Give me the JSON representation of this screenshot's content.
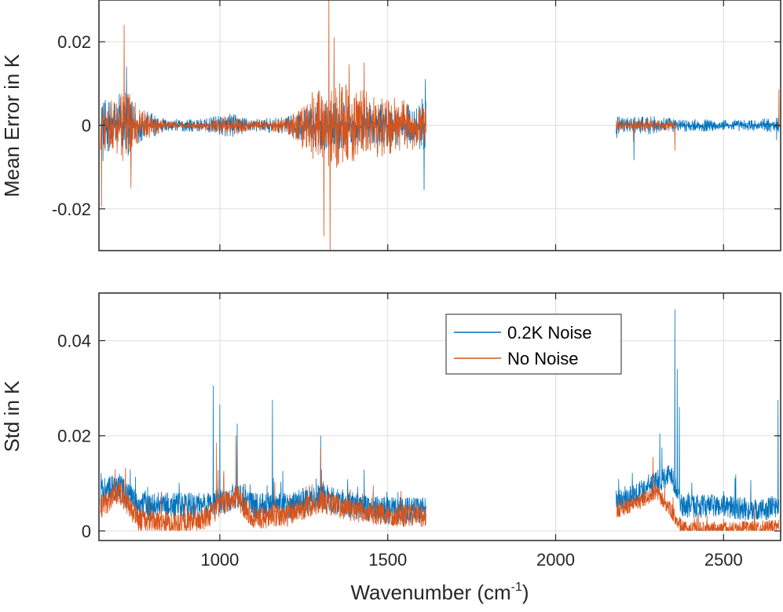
{
  "chart_data": [
    {
      "type": "line",
      "panel": "top",
      "title": "",
      "xlabel": "",
      "ylabel": "Mean Error in K",
      "xlim": [
        640,
        2670
      ],
      "ylim": [
        -0.03,
        0.03
      ],
      "xticks": [
        1000,
        1500,
        2000,
        2500
      ],
      "yticks": [
        -0.02,
        0,
        0.02
      ],
      "ytick_labels": [
        "-0.02",
        "0",
        "0.02"
      ],
      "grid": true,
      "series": [
        {
          "name": "0.2K Noise",
          "color": "#0072BD",
          "segments": [
            {
              "x_range": [
                645,
                1614
              ],
              "baseline": 0.0,
              "envelope_x": [
                650,
                700,
                720,
                760,
                850,
                950,
                1030,
                1100,
                1200,
                1250,
                1300,
                1350,
                1400,
                1450,
                1500,
                1550,
                1600,
                1614
              ],
              "envelope_amp": [
                0.006,
                0.007,
                0.008,
                0.004,
                0.0015,
                0.0015,
                0.003,
                0.0015,
                0.002,
                0.004,
                0.006,
                0.006,
                0.005,
                0.005,
                0.005,
                0.005,
                0.006,
                0.009
              ],
              "peaks": [
                [
                  652,
                  -0.0085
                ],
                [
                  700,
                  0.0075
                ],
                [
                  722,
                  0.014
                ],
                [
                  1608,
                  -0.0155
                ],
                [
                  1612,
                  0.011
                ]
              ]
            },
            {
              "x_range": [
                2180,
                2665
              ],
              "baseline": 0.0,
              "envelope_x": [
                2180,
                2250,
                2300,
                2350,
                2400,
                2500,
                2600,
                2665
              ],
              "envelope_amp": [
                0.002,
                0.002,
                0.0022,
                0.0016,
                0.0015,
                0.0014,
                0.0014,
                0.002
              ],
              "peaks": [
                [
                  2182,
                  -0.003
                ],
                [
                  2233,
                  -0.0083
                ],
                [
                  2658,
                  -0.0035
                ]
              ]
            }
          ]
        },
        {
          "name": "No Noise",
          "color": "#D95319",
          "segments": [
            {
              "x_range": [
                645,
                1614
              ],
              "baseline": 0.0,
              "envelope_x": [
                650,
                700,
                720,
                760,
                850,
                950,
                1030,
                1100,
                1200,
                1250,
                1300,
                1350,
                1400,
                1450,
                1500,
                1550,
                1600,
                1614
              ],
              "envelope_amp": [
                0.006,
                0.007,
                0.01,
                0.004,
                0.001,
                0.001,
                0.0025,
                0.001,
                0.002,
                0.006,
                0.01,
                0.011,
                0.009,
                0.008,
                0.007,
                0.006,
                0.006,
                0.004
              ],
              "peaks": [
                [
                  648,
                  -0.0195
                ],
                [
                  715,
                  0.024
                ],
                [
                  735,
                  -0.015
                ],
                [
                  1310,
                  -0.0265
                ],
                [
                  1325,
                  0.032
                ],
                [
                  1328,
                  -0.031
                ],
                [
                  1340,
                  0.021
                ],
                [
                  1385,
                  0.0145
                ],
                [
                  1430,
                  0.015
                ]
              ]
            },
            {
              "x_range": [
                2180,
                2360
              ],
              "baseline": 0.0,
              "envelope_x": [
                2180,
                2250,
                2300,
                2360
              ],
              "envelope_amp": [
                0.0015,
                0.0015,
                0.0014,
                0.0012
              ],
              "peaks": [
                [
                  2232,
                  -0.004
                ],
                [
                  2355,
                  -0.006
                ]
              ]
            },
            {
              "x_range": [
                2662,
                2668
              ],
              "baseline": 0.0,
              "envelope_x": [
                2662,
                2668
              ],
              "envelope_amp": [
                0.0005,
                0.0005
              ],
              "peaks": [
                [
                  2665,
                  0.0085
                ]
              ]
            }
          ]
        }
      ]
    },
    {
      "type": "line",
      "panel": "bottom",
      "title": "",
      "xlabel": "Wavenumber (cm⁻¹)",
      "ylabel": "Std in K",
      "xlim": [
        640,
        2670
      ],
      "ylim": [
        -0.002,
        0.05
      ],
      "xticks": [
        1000,
        1500,
        2000,
        2500
      ],
      "xtick_labels": [
        "1000",
        "1500",
        "2000",
        "2500"
      ],
      "yticks": [
        0,
        0.02,
        0.04
      ],
      "ytick_labels": [
        "0",
        "0.02",
        "0.04"
      ],
      "grid": true,
      "legend": {
        "position": "top-right",
        "entries": [
          "0.2K Noise",
          "No Noise"
        ]
      },
      "series": [
        {
          "name": "0.2K Noise",
          "color": "#0072BD",
          "segments": [
            {
              "x_range": [
                645,
                1614
              ],
              "base_x": [
                650,
                700,
                760,
                850,
                950,
                1000,
                1050,
                1100,
                1200,
                1300,
                1400,
                1500,
                1614
              ],
              "base_y": [
                0.008,
                0.009,
                0.005,
                0.005,
                0.005,
                0.006,
                0.007,
                0.005,
                0.005,
                0.007,
                0.005,
                0.004,
                0.004
              ],
              "jitter": 0.0035,
              "peaks": [
                [
                  980,
                  0.0305
                ],
                [
                  1000,
                  0.0265
                ],
                [
                  1052,
                  0.0225
                ],
                [
                  1157,
                  0.0275
                ],
                [
                  1300,
                  0.02
                ]
              ]
            },
            {
              "x_range": [
                2180,
                2665
              ],
              "base_x": [
                2180,
                2250,
                2300,
                2345,
                2375,
                2500,
                2600,
                2665
              ],
              "base_y": [
                0.006,
                0.008,
                0.01,
                0.012,
                0.005,
                0.005,
                0.004,
                0.005
              ],
              "jitter": 0.003,
              "peaks": [
                [
                  2355,
                  0.0465
                ],
                [
                  2362,
                  0.034
                ],
                [
                  2368,
                  0.026
                ],
                [
                  2310,
                  0.0205
                ],
                [
                  2662,
                  0.0275
                ]
              ]
            }
          ]
        },
        {
          "name": "No Noise",
          "color": "#D95319",
          "segments": [
            {
              "x_range": [
                645,
                1614
              ],
              "base_x": [
                650,
                700,
                760,
                850,
                950,
                1000,
                1050,
                1100,
                1200,
                1300,
                1400,
                1500,
                1614
              ],
              "base_y": [
                0.005,
                0.008,
                0.002,
                0.0015,
                0.002,
                0.005,
                0.007,
                0.0025,
                0.003,
                0.006,
                0.004,
                0.003,
                0.003
              ],
              "jitter": 0.003,
              "peaks": [
                [
                  990,
                  0.0185
                ],
                [
                  1048,
                  0.02
                ],
                [
                  1300,
                  0.0175
                ]
              ]
            },
            {
              "x_range": [
                2180,
                2665
              ],
              "base_x": [
                2180,
                2250,
                2300,
                2345,
                2360,
                2380,
                2500,
                2665
              ],
              "base_y": [
                0.004,
                0.006,
                0.008,
                0.004,
                0.002,
                0.0002,
                0.0002,
                0.0006
              ],
              "jitter": 0.002,
              "peaks": [
                [
                  2290,
                  0.0155
                ]
              ]
            }
          ]
        }
      ]
    }
  ],
  "legend_labels": {
    "noise": "0.2K Noise",
    "nonoise": "No Noise"
  },
  "axis_text": {
    "top_ylabel": "Mean Error in K",
    "bottom_ylabel": "Std in K",
    "xlabel_main": "Wavenumber (cm",
    "xlabel_sup": "-1",
    "xlabel_end": ")"
  }
}
